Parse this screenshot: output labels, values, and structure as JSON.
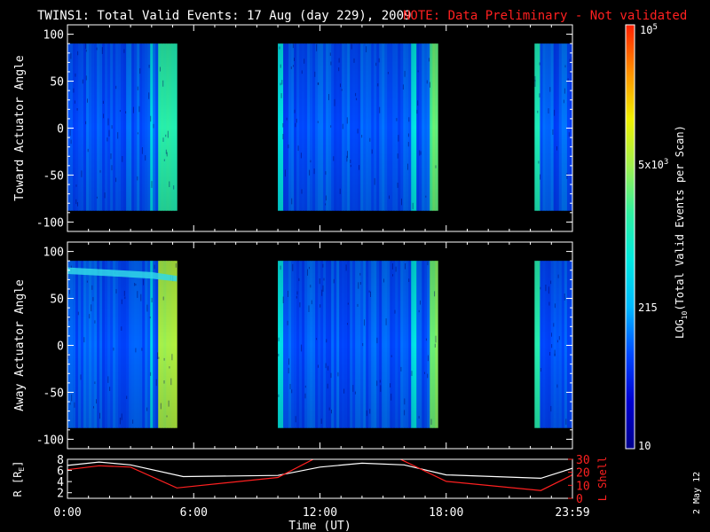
{
  "header": {
    "title": "TWINS1: Total Valid Events: 17 Aug (day 229), 2009",
    "note": "NOTE: Data Preliminary - Not validated",
    "note_color": "#ff2020"
  },
  "date_stamp": "2 May 12",
  "chart_data": [
    {
      "type": "heatmap",
      "name_panel": "toward",
      "ylabel": "Toward Actuator Angle",
      "ylim": [
        -110,
        110
      ],
      "yticks": [
        100,
        50,
        0,
        -50,
        -100
      ],
      "data_ylim": [
        -88,
        90
      ],
      "xlim_hours": [
        0,
        24
      ],
      "data_blocks": [
        {
          "start": 0.0,
          "end": 5.2
        },
        {
          "start": 10.0,
          "end": 17.6
        },
        {
          "start": 22.2,
          "end": 24.0
        }
      ],
      "bright_bands": [
        {
          "start": 4.3,
          "end": 5.3,
          "level": 0.55
        },
        {
          "start": 3.9,
          "end": 4.1,
          "level": 0.42
        },
        {
          "start": 17.2,
          "end": 17.6,
          "level": 0.62
        },
        {
          "start": 10.0,
          "end": 10.2,
          "level": 0.45
        },
        {
          "start": 16.3,
          "end": 16.6,
          "level": 0.45
        },
        {
          "start": 22.2,
          "end": 22.5,
          "level": 0.55
        }
      ]
    },
    {
      "type": "heatmap",
      "name_panel": "away",
      "ylabel": "Away Actuator Angle",
      "ylim": [
        -110,
        110
      ],
      "yticks": [
        100,
        50,
        0,
        -50,
        -100
      ],
      "data_ylim": [
        -88,
        90
      ],
      "xlim_hours": [
        0,
        24
      ],
      "data_blocks": [
        {
          "start": 0.0,
          "end": 5.2
        },
        {
          "start": 10.0,
          "end": 17.6
        },
        {
          "start": 22.2,
          "end": 24.0
        }
      ],
      "bright_bands": [
        {
          "start": 4.3,
          "end": 5.3,
          "level": 0.7
        },
        {
          "start": 3.9,
          "end": 4.1,
          "level": 0.42
        },
        {
          "start": 17.2,
          "end": 17.6,
          "level": 0.66
        },
        {
          "start": 10.0,
          "end": 10.2,
          "level": 0.45
        },
        {
          "start": 16.3,
          "end": 16.6,
          "level": 0.45
        },
        {
          "start": 22.2,
          "end": 22.5,
          "level": 0.55
        }
      ]
    },
    {
      "type": "line",
      "name_panel": "orbit",
      "ylabel_left": "R [R",
      "ylabel_left_sub": "E",
      "ylabel_left_end": "]",
      "ylabel_right": "L Shell",
      "ylim_left": [
        1,
        8
      ],
      "ylim_right": [
        0,
        30
      ],
      "yticks_left": [
        8,
        6,
        4,
        2
      ],
      "yticks_right": [
        30,
        20,
        10,
        0
      ],
      "xlabel": "Time (UT)",
      "xticks": [
        {
          "value": 0,
          "label": "0:00"
        },
        {
          "value": 6,
          "label": "6:00"
        },
        {
          "value": 12,
          "label": "12:00"
        },
        {
          "value": 18,
          "label": "18:00"
        },
        {
          "value": 24,
          "label": "23:59"
        }
      ],
      "series": [
        {
          "axis": "left",
          "color": "#ffffff",
          "x": [
            0,
            1.5,
            3,
            5.5,
            10,
            12,
            14,
            16,
            18,
            22.5,
            24
          ],
          "y": [
            6.9,
            7.5,
            7.0,
            4.9,
            5.1,
            6.6,
            7.3,
            7.0,
            5.2,
            4.6,
            6.4
          ]
        },
        {
          "axis": "right",
          "color": "#ff2020",
          "x": [
            0,
            1.5,
            3,
            5.2,
            10,
            11.8,
            15.7,
            18,
            22.5,
            24
          ],
          "y": [
            22,
            25,
            24,
            8,
            16,
            31,
            31,
            13,
            6,
            18
          ]
        }
      ]
    }
  ],
  "colorbar": {
    "label_main": "LOG",
    "label_sub": "10",
    "label_rest": "(Total Valid Events per Scan)",
    "tick_top_base": "10",
    "tick_top_exp": "5",
    "tick_mid_base": "5x10",
    "tick_mid_exp": "3",
    "tick_low": "215",
    "tick_bottom": "10",
    "stops": [
      "#00008c",
      "#0000d0",
      "#0048ff",
      "#00b8ff",
      "#00e8e0",
      "#30f0a0",
      "#a0f050",
      "#f0f000",
      "#ff9000",
      "#ff2000"
    ]
  }
}
